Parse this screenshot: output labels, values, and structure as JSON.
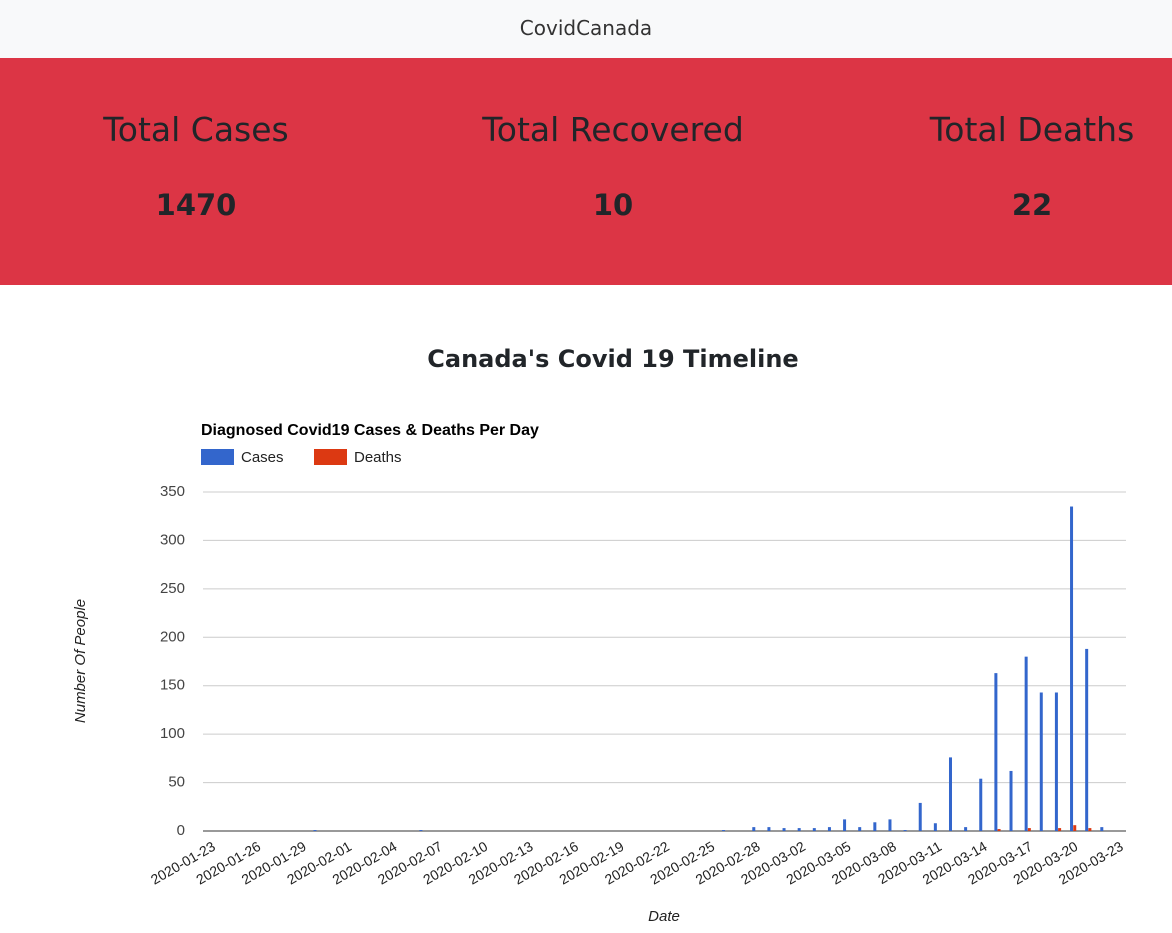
{
  "navbar": {
    "brand": "CovidCanada"
  },
  "stats": [
    {
      "label": "Total Cases",
      "value": "1470"
    },
    {
      "label": "Total Recovered",
      "value": "10"
    },
    {
      "label": "Total Deaths",
      "value": "22"
    }
  ],
  "heading": "Canada's Covid 19 Timeline",
  "chart_data": {
    "type": "bar",
    "title": "Diagnosed Covid19 Cases & Deaths Per Day",
    "x_label": "Date",
    "y_label": "Number Of People",
    "legend": "top-left",
    "grid": true,
    "categories": [
      "2020-01-23",
      null,
      null,
      "2020-01-26",
      null,
      null,
      "2020-01-29",
      null,
      null,
      "2020-02-01",
      null,
      null,
      "2020-02-04",
      null,
      null,
      "2020-02-07",
      null,
      null,
      "2020-02-10",
      null,
      null,
      "2020-02-13",
      null,
      null,
      "2020-02-16",
      null,
      null,
      "2020-02-19",
      null,
      null,
      "2020-02-22",
      null,
      null,
      "2020-02-25",
      null,
      null,
      "2020-02-28",
      null,
      null,
      "2020-03-02",
      null,
      null,
      "2020-03-05",
      null,
      null,
      "2020-03-08",
      null,
      null,
      "2020-03-11",
      null,
      null,
      "2020-03-14",
      null,
      null,
      "2020-03-17",
      null,
      null,
      "2020-03-20",
      null,
      null,
      "2020-03-23"
    ],
    "series": [
      {
        "name": "Cases",
        "color": "#3366cc",
        "values": [
          0,
          0,
          0,
          0,
          0,
          0,
          0,
          1,
          0,
          0,
          0,
          0,
          0,
          0,
          1,
          0,
          0,
          0,
          0,
          0,
          0,
          0,
          0,
          0,
          0,
          0,
          0,
          0,
          0,
          0,
          0,
          0,
          0,
          0,
          1,
          0,
          4,
          4,
          3,
          3,
          3,
          4,
          12,
          4,
          9,
          12,
          1,
          29,
          8,
          76,
          4,
          54,
          163,
          62,
          180,
          143,
          143,
          335,
          188,
          4,
          0
        ]
      },
      {
        "name": "Deaths",
        "color": "#dc3912",
        "values": [
          0,
          0,
          0,
          0,
          0,
          0,
          0,
          0,
          0,
          0,
          0,
          0,
          0,
          0,
          0,
          0,
          0,
          0,
          0,
          0,
          0,
          0,
          0,
          0,
          0,
          0,
          0,
          0,
          0,
          0,
          0,
          0,
          0,
          0,
          0,
          0,
          0,
          0,
          0,
          0,
          0,
          0,
          0,
          0,
          0,
          0,
          0,
          0,
          0,
          0,
          0,
          0,
          2,
          0,
          3,
          0,
          3,
          6,
          3,
          0,
          0
        ]
      }
    ],
    "ylim": [
      0,
      350
    ],
    "yticks": [
      0,
      50,
      100,
      150,
      200,
      250,
      300,
      350
    ]
  }
}
